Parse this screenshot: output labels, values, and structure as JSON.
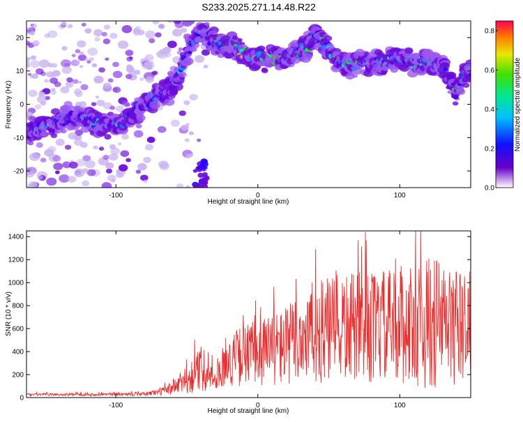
{
  "title": "S233.2025.271.14.48.R22",
  "colors": {
    "spectrum": [
      "#c9b3f0",
      "#9b59f0",
      "#6a0ad8",
      "#2a00ff",
      "#0090ff",
      "#00e8d0",
      "#20e020",
      "#f0e000",
      "#ff2020"
    ],
    "snr_line": "#e83030"
  },
  "chart_data": [
    {
      "type": "heatmap",
      "name": "spectrogram",
      "xlabel": "Height of straight line (km)",
      "ylabel": "Frequency (Hz)",
      "xlim": [
        -163,
        150
      ],
      "ylim": [
        -25,
        25
      ],
      "xticks": [
        -100,
        0,
        100
      ],
      "xtick_labels": [
        "-100",
        "0",
        "100"
      ],
      "yticks": [
        -20,
        -10,
        0,
        10,
        20
      ],
      "ytick_labels": [
        "-20",
        "-10",
        "0",
        "10",
        "20"
      ],
      "ridge": {
        "description_points_x": [
          -160,
          -130,
          -100,
          -80,
          -60,
          -50,
          -40,
          -35,
          -30,
          0,
          20,
          35,
          40,
          60,
          100,
          130,
          140,
          145,
          150
        ],
        "description_points_y": [
          -8,
          -4,
          -7,
          0,
          5,
          15,
          22,
          20,
          19,
          14,
          14,
          17,
          21,
          12,
          13,
          11,
          3,
          8,
          10
        ]
      },
      "colorbar": {
        "label": "Normalized spectral amplitude",
        "range": [
          0.0,
          0.85
        ],
        "ticks": [
          0.0,
          0.2,
          0.4,
          0.6,
          0.8
        ],
        "tick_labels": [
          "0.0",
          "0.2",
          "0.4",
          "0.6",
          "0.8"
        ]
      }
    },
    {
      "type": "line",
      "name": "snr",
      "xlabel": "Height of straight line (km)",
      "ylabel": "SNR (10 * v/v)",
      "xlim": [
        -163,
        150
      ],
      "ylim": [
        0,
        1450
      ],
      "xticks": [
        -100,
        0,
        100
      ],
      "xtick_labels": [
        "-100",
        "0",
        "100"
      ],
      "yticks": [
        0,
        200,
        400,
        600,
        800,
        1000,
        1200,
        1400
      ],
      "ytick_labels": [
        "0",
        "200",
        "400",
        "600",
        "800",
        "1000",
        "1200",
        "1400"
      ],
      "envelope_x": [
        -163,
        -80,
        -65,
        -50,
        -40,
        -30,
        -25,
        -15,
        0,
        20,
        35,
        60,
        100,
        125,
        150
      ],
      "envelope_mean": [
        25,
        30,
        60,
        150,
        250,
        150,
        250,
        350,
        400,
        450,
        550,
        600,
        620,
        650,
        600
      ],
      "envelope_spread": [
        10,
        15,
        40,
        120,
        200,
        80,
        150,
        250,
        300,
        350,
        450,
        480,
        500,
        600,
        450
      ]
    }
  ]
}
